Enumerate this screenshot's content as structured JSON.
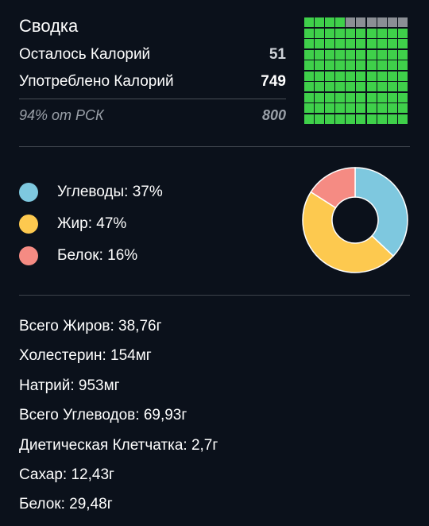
{
  "summary": {
    "title": "Сводка",
    "remaining_label": "Осталось Калорий",
    "remaining_value": "51",
    "consumed_label": "Употреблено Калорий",
    "consumed_value": "749",
    "rsk_label": "94% от РСК",
    "rsk_value": "800",
    "progress_filled_fraction": 0.94
  },
  "colors": {
    "background": "#0b111b",
    "waffle_filled": "#3fd04a",
    "waffle_empty": "#8b8f95",
    "carbs": "#7ec8df",
    "fat": "#fdc94f",
    "protein": "#f58b83"
  },
  "macros": [
    {
      "label": "Углеводы: 37%",
      "percent": 37,
      "color": "#7ec8df"
    },
    {
      "label": "Жир: 47%",
      "percent": 47,
      "color": "#fdc94f"
    },
    {
      "label": "Белок: 16%",
      "percent": 16,
      "color": "#f58b83"
    }
  ],
  "nutrients": [
    "Всего Жиров: 38,76г",
    "Холестерин: 154мг",
    "Натрий: 953мг",
    "Всего Углеводов: 69,93г",
    "Диетическая Клетчатка: 2,7г",
    "Сахар: 12,43г",
    "Белок: 29,48г"
  ]
}
